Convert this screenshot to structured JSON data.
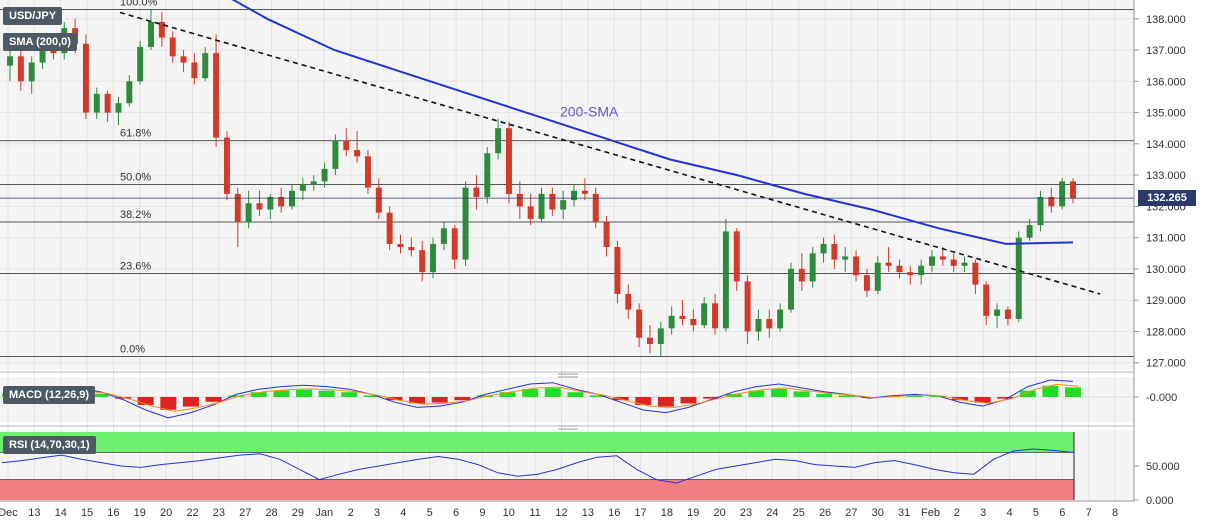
{
  "chart_data": {
    "type": "candlestick",
    "title": "USD/JPY",
    "overlay_tags": [
      "USD/JPY",
      "SMA (200,0)"
    ],
    "x_ticks": [
      "Dec",
      "13",
      "14",
      "15",
      "16",
      "19",
      "20",
      "22",
      "23",
      "27",
      "28",
      "29",
      "Jan",
      "2",
      "3",
      "4",
      "5",
      "6",
      "9",
      "10",
      "11",
      "12",
      "13",
      "16",
      "17",
      "18",
      "19",
      "20",
      "23",
      "24",
      "25",
      "26",
      "27",
      "30",
      "31",
      "Feb",
      "2",
      "3",
      "4",
      "5",
      "6",
      "7",
      "8"
    ],
    "y_ticks": [
      "127.000",
      "128.000",
      "129.000",
      "130.000",
      "131.000",
      "132.000",
      "133.000",
      "134.000",
      "135.000",
      "136.000",
      "137.000",
      "138.000"
    ],
    "ylim": [
      126.8,
      138.6
    ],
    "current_price": "132.265",
    "fib_levels": [
      {
        "label": "100.0%",
        "value": 138.3
      },
      {
        "label": "61.8%",
        "value": 134.1
      },
      {
        "label": "50.0%",
        "value": 132.7
      },
      {
        "label": "38.2%",
        "value": 131.5
      },
      {
        "label": "23.6%",
        "value": 129.85
      },
      {
        "label": "0.0%",
        "value": 127.2
      }
    ],
    "sma_label": "200-SMA",
    "sma_approx_values": [
      139.2,
      138.0,
      137.0,
      136.3,
      135.6,
      134.9,
      134.2,
      133.5,
      133.0,
      132.4,
      131.9,
      131.3,
      130.8,
      130.85
    ],
    "trendline": {
      "start": 138.2,
      "end": 129.2,
      "style": "dashed"
    },
    "candles": [
      {
        "o": 136.5,
        "h": 137.2,
        "l": 136.0,
        "c": 136.8
      },
      {
        "o": 136.8,
        "h": 137.1,
        "l": 135.7,
        "c": 136.0
      },
      {
        "o": 136.0,
        "h": 136.8,
        "l": 135.6,
        "c": 136.6
      },
      {
        "o": 136.6,
        "h": 137.3,
        "l": 136.4,
        "c": 137.0
      },
      {
        "o": 137.0,
        "h": 137.4,
        "l": 136.7,
        "c": 136.9
      },
      {
        "o": 136.9,
        "h": 137.9,
        "l": 136.7,
        "c": 137.7
      },
      {
        "o": 137.7,
        "h": 138.0,
        "l": 136.9,
        "c": 137.2
      },
      {
        "o": 137.2,
        "h": 137.5,
        "l": 134.8,
        "c": 135.0
      },
      {
        "o": 135.0,
        "h": 135.8,
        "l": 134.8,
        "c": 135.6
      },
      {
        "o": 135.6,
        "h": 135.7,
        "l": 134.7,
        "c": 135.0
      },
      {
        "o": 135.0,
        "h": 135.5,
        "l": 134.6,
        "c": 135.3
      },
      {
        "o": 135.3,
        "h": 136.2,
        "l": 135.2,
        "c": 136.0
      },
      {
        "o": 136.0,
        "h": 137.3,
        "l": 135.9,
        "c": 137.1
      },
      {
        "o": 137.1,
        "h": 138.3,
        "l": 137.0,
        "c": 137.9
      },
      {
        "o": 137.9,
        "h": 138.2,
        "l": 137.1,
        "c": 137.4
      },
      {
        "o": 137.4,
        "h": 137.6,
        "l": 136.6,
        "c": 136.8
      },
      {
        "o": 136.8,
        "h": 137.0,
        "l": 136.3,
        "c": 136.6
      },
      {
        "o": 136.6,
        "h": 136.9,
        "l": 135.9,
        "c": 136.1
      },
      {
        "o": 136.1,
        "h": 137.1,
        "l": 136.0,
        "c": 136.9
      },
      {
        "o": 136.9,
        "h": 137.5,
        "l": 133.9,
        "c": 134.2
      },
      {
        "o": 134.2,
        "h": 134.4,
        "l": 132.2,
        "c": 132.4
      },
      {
        "o": 132.4,
        "h": 132.6,
        "l": 130.7,
        "c": 131.5
      },
      {
        "o": 131.5,
        "h": 132.5,
        "l": 131.3,
        "c": 132.1
      },
      {
        "o": 132.1,
        "h": 132.5,
        "l": 131.7,
        "c": 131.9
      },
      {
        "o": 131.9,
        "h": 132.4,
        "l": 131.6,
        "c": 132.3
      },
      {
        "o": 132.3,
        "h": 132.6,
        "l": 131.8,
        "c": 132.0
      },
      {
        "o": 132.0,
        "h": 132.7,
        "l": 131.9,
        "c": 132.5
      },
      {
        "o": 132.5,
        "h": 132.9,
        "l": 132.2,
        "c": 132.7
      },
      {
        "o": 132.7,
        "h": 133.0,
        "l": 132.5,
        "c": 132.8
      },
      {
        "o": 132.8,
        "h": 133.4,
        "l": 132.6,
        "c": 133.2
      },
      {
        "o": 133.2,
        "h": 134.3,
        "l": 133.0,
        "c": 134.1
      },
      {
        "o": 134.1,
        "h": 134.5,
        "l": 133.6,
        "c": 133.8
      },
      {
        "o": 133.8,
        "h": 134.4,
        "l": 133.4,
        "c": 133.6
      },
      {
        "o": 133.6,
        "h": 133.8,
        "l": 132.4,
        "c": 132.6
      },
      {
        "o": 132.6,
        "h": 132.9,
        "l": 131.6,
        "c": 131.8
      },
      {
        "o": 131.8,
        "h": 132.0,
        "l": 130.6,
        "c": 130.8
      },
      {
        "o": 130.8,
        "h": 131.1,
        "l": 130.5,
        "c": 130.7
      },
      {
        "o": 130.7,
        "h": 131.0,
        "l": 130.4,
        "c": 130.6
      },
      {
        "o": 130.6,
        "h": 130.9,
        "l": 129.6,
        "c": 129.9
      },
      {
        "o": 129.9,
        "h": 131.0,
        "l": 129.7,
        "c": 130.8
      },
      {
        "o": 130.8,
        "h": 131.5,
        "l": 130.6,
        "c": 131.3
      },
      {
        "o": 131.3,
        "h": 131.4,
        "l": 130.0,
        "c": 130.3
      },
      {
        "o": 130.3,
        "h": 132.8,
        "l": 130.1,
        "c": 132.6
      },
      {
        "o": 132.6,
        "h": 133.0,
        "l": 131.9,
        "c": 132.3
      },
      {
        "o": 132.3,
        "h": 133.9,
        "l": 132.1,
        "c": 133.7
      },
      {
        "o": 133.7,
        "h": 134.8,
        "l": 133.5,
        "c": 134.5
      },
      {
        "o": 134.5,
        "h": 134.7,
        "l": 132.1,
        "c": 132.4
      },
      {
        "o": 132.4,
        "h": 132.8,
        "l": 131.6,
        "c": 132.0
      },
      {
        "o": 132.0,
        "h": 132.4,
        "l": 131.4,
        "c": 131.6
      },
      {
        "o": 131.6,
        "h": 132.6,
        "l": 131.5,
        "c": 132.4
      },
      {
        "o": 132.4,
        "h": 132.6,
        "l": 131.7,
        "c": 131.9
      },
      {
        "o": 131.9,
        "h": 132.5,
        "l": 131.6,
        "c": 132.2
      },
      {
        "o": 132.2,
        "h": 132.7,
        "l": 132.0,
        "c": 132.5
      },
      {
        "o": 132.5,
        "h": 132.9,
        "l": 132.2,
        "c": 132.4
      },
      {
        "o": 132.4,
        "h": 132.6,
        "l": 131.3,
        "c": 131.5
      },
      {
        "o": 131.5,
        "h": 131.7,
        "l": 130.4,
        "c": 130.7
      },
      {
        "o": 130.7,
        "h": 130.9,
        "l": 128.9,
        "c": 129.2
      },
      {
        "o": 129.2,
        "h": 129.5,
        "l": 128.4,
        "c": 128.7
      },
      {
        "o": 128.7,
        "h": 128.9,
        "l": 127.5,
        "c": 127.8
      },
      {
        "o": 127.8,
        "h": 128.2,
        "l": 127.3,
        "c": 127.6
      },
      {
        "o": 127.6,
        "h": 128.3,
        "l": 127.2,
        "c": 128.1
      },
      {
        "o": 128.1,
        "h": 128.8,
        "l": 127.9,
        "c": 128.5
      },
      {
        "o": 128.5,
        "h": 129.0,
        "l": 128.2,
        "c": 128.4
      },
      {
        "o": 128.4,
        "h": 128.7,
        "l": 128.0,
        "c": 128.2
      },
      {
        "o": 128.2,
        "h": 129.1,
        "l": 128.1,
        "c": 128.9
      },
      {
        "o": 128.9,
        "h": 129.2,
        "l": 127.9,
        "c": 128.1
      },
      {
        "o": 128.1,
        "h": 131.6,
        "l": 128.0,
        "c": 131.2
      },
      {
        "o": 131.2,
        "h": 131.3,
        "l": 129.3,
        "c": 129.6
      },
      {
        "o": 129.6,
        "h": 129.8,
        "l": 127.6,
        "c": 128.0
      },
      {
        "o": 128.0,
        "h": 128.7,
        "l": 127.7,
        "c": 128.4
      },
      {
        "o": 128.4,
        "h": 128.7,
        "l": 127.8,
        "c": 128.1
      },
      {
        "o": 128.1,
        "h": 128.9,
        "l": 128.0,
        "c": 128.7
      },
      {
        "o": 128.7,
        "h": 130.2,
        "l": 128.6,
        "c": 130.0
      },
      {
        "o": 130.0,
        "h": 130.5,
        "l": 129.3,
        "c": 129.6
      },
      {
        "o": 129.6,
        "h": 130.7,
        "l": 129.4,
        "c": 130.5
      },
      {
        "o": 130.5,
        "h": 131.0,
        "l": 130.2,
        "c": 130.8
      },
      {
        "o": 130.8,
        "h": 131.1,
        "l": 130.0,
        "c": 130.3
      },
      {
        "o": 130.3,
        "h": 130.7,
        "l": 129.9,
        "c": 130.4
      },
      {
        "o": 130.4,
        "h": 130.6,
        "l": 129.6,
        "c": 129.8
      },
      {
        "o": 129.8,
        "h": 130.0,
        "l": 129.1,
        "c": 129.3
      },
      {
        "o": 129.3,
        "h": 130.4,
        "l": 129.2,
        "c": 130.2
      },
      {
        "o": 130.2,
        "h": 130.7,
        "l": 129.9,
        "c": 130.1
      },
      {
        "o": 130.1,
        "h": 130.3,
        "l": 129.7,
        "c": 129.9
      },
      {
        "o": 129.9,
        "h": 130.1,
        "l": 129.5,
        "c": 129.8
      },
      {
        "o": 129.8,
        "h": 130.3,
        "l": 129.5,
        "c": 130.1
      },
      {
        "o": 130.1,
        "h": 130.6,
        "l": 129.9,
        "c": 130.4
      },
      {
        "o": 130.4,
        "h": 130.7,
        "l": 130.1,
        "c": 130.3
      },
      {
        "o": 130.3,
        "h": 130.5,
        "l": 129.9,
        "c": 130.1
      },
      {
        "o": 130.1,
        "h": 130.4,
        "l": 129.9,
        "c": 130.2
      },
      {
        "o": 130.2,
        "h": 130.3,
        "l": 129.2,
        "c": 129.5
      },
      {
        "o": 129.5,
        "h": 129.6,
        "l": 128.2,
        "c": 128.5
      },
      {
        "o": 128.5,
        "h": 128.9,
        "l": 128.1,
        "c": 128.7
      },
      {
        "o": 128.7,
        "h": 128.8,
        "l": 128.2,
        "c": 128.4
      },
      {
        "o": 128.4,
        "h": 131.2,
        "l": 128.3,
        "c": 131.0
      },
      {
        "o": 131.0,
        "h": 131.6,
        "l": 130.9,
        "c": 131.4
      },
      {
        "o": 131.4,
        "h": 132.5,
        "l": 131.2,
        "c": 132.3
      },
      {
        "o": 132.3,
        "h": 132.6,
        "l": 131.8,
        "c": 132.0
      },
      {
        "o": 132.0,
        "h": 132.9,
        "l": 131.9,
        "c": 132.8
      },
      {
        "o": 132.8,
        "h": 132.9,
        "l": 132.1,
        "c": 132.27
      }
    ],
    "macd": {
      "label": "MACD (12,26,9)",
      "y_ticks": [
        "-0.000"
      ],
      "hist": [
        0.2,
        0.3,
        0.4,
        0.35,
        0.2,
        -0.1,
        -0.5,
        -0.8,
        -0.6,
        -0.3,
        0.1,
        0.3,
        0.4,
        0.45,
        0.4,
        0.3,
        0.1,
        -0.2,
        -0.4,
        -0.35,
        -0.2,
        0.1,
        0.3,
        0.5,
        0.55,
        0.3,
        0.1,
        -0.2,
        -0.5,
        -0.6,
        -0.4,
        -0.1,
        0.2,
        0.4,
        0.5,
        0.35,
        0.2,
        0.1,
        -0.05,
        0.05,
        0.1,
        0.05,
        -0.2,
        -0.35,
        -0.1,
        0.4,
        0.7,
        0.6
      ]
    },
    "rsi": {
      "label": "RSI (14,70,30,1)",
      "y_ticks": [
        "50.000",
        "0.000"
      ],
      "upper": 70,
      "lower": 30,
      "values": [
        55,
        58,
        62,
        66,
        60,
        55,
        50,
        48,
        52,
        55,
        58,
        62,
        66,
        68,
        60,
        45,
        30,
        38,
        45,
        50,
        55,
        60,
        64,
        60,
        52,
        40,
        35,
        38,
        45,
        55,
        63,
        65,
        45,
        30,
        25,
        35,
        45,
        50,
        55,
        60,
        58,
        52,
        50,
        48,
        55,
        58,
        52,
        45,
        40,
        38,
        60,
        72,
        75,
        73,
        70
      ]
    }
  }
}
